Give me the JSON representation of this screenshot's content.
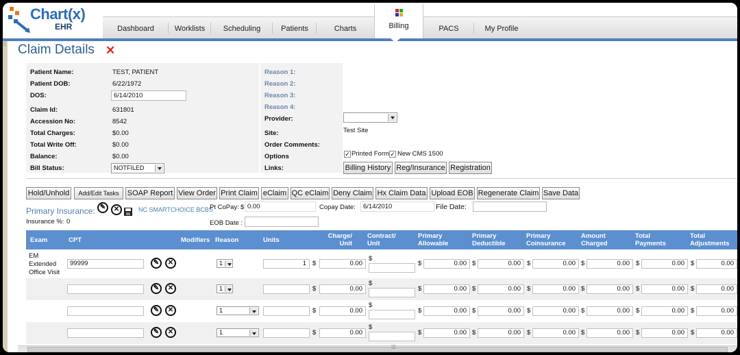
{
  "app": {
    "logo_text": "Chart(x)",
    "logo_sub": "EHR"
  },
  "nav": {
    "tabs": [
      "Dashboard",
      "Worklists",
      "Scheduling",
      "Patients",
      "Charts",
      "Billing",
      "PACS",
      "My Profile"
    ],
    "active": "Billing"
  },
  "page": {
    "title": "Claim Details",
    "close_glyph": "✕"
  },
  "patient": {
    "name_label": "Patient Name:",
    "name": "TEST, PATIENT",
    "dob_label": "Patient DOB:",
    "dob": "6/22/1972",
    "dos_label": "DOS:",
    "dos": "6/14/2010",
    "claim_id_label": "Claim Id:",
    "claim_id": "631801",
    "accession_label": "Accession No:",
    "accession": "8542",
    "total_charges_label": "Total Charges:",
    "total_charges": "$0.00",
    "total_writeoff_label": "Total Write Off:",
    "total_writeoff": "$0.00",
    "balance_label": "Balance:",
    "balance": "$0.00",
    "bill_status_label": "Bill Status:",
    "bill_status": "NOTFILED"
  },
  "reasons": [
    "Reason 1:",
    "Reason 2:",
    "Reason 3:",
    "Reason 4:"
  ],
  "details": {
    "provider_label": "Provider:",
    "provider": "",
    "site_label": "Site:",
    "site": "Test Site",
    "order_comments_label": "Order Comments:",
    "options_label": "Options",
    "printed_form": "Printed Form",
    "new_cms": "New CMS 1500",
    "links_label": "Links:",
    "links": [
      "Billing History",
      "Reg/Insurance",
      "Registration"
    ]
  },
  "toolbar": [
    "Hold/Unhold",
    "Add/Edit Tasks",
    "SOAP Report",
    "View Order",
    "Print Claim",
    "eClaim",
    "QC eClaim",
    "Deny Claim",
    "Hx Claim Data",
    "Upload EOB",
    "Regenerate Claim",
    "Save Data"
  ],
  "insurance": {
    "label": "Primary Insurance:",
    "name": "NC SMARTCHOICE BCBS",
    "pct_label": "Insurance %:",
    "pct": "0",
    "copay_label": "Pt CoPay:",
    "copay_dollar": "$",
    "copay": "0.00",
    "copay_date_label": "Copay Date:",
    "copay_date": "6/14/2010",
    "file_date_label": "File Date:",
    "file_date": "",
    "eob_date_label": "EOB Date :",
    "eob_date": ""
  },
  "grid": {
    "headers": [
      "Exam",
      "CPT",
      "Modifiers",
      "Reason",
      "Units",
      "Charge/\nUnit",
      "Contract/\nUnit",
      "Primary\nAllowable",
      "Primary\nDeductible",
      "Primary\nCoinsurance",
      "Amount\nCharged",
      "Total\nPayments",
      "Total\nAdjustments"
    ],
    "rows": [
      {
        "exam": "EM Extended Office Visit",
        "cpt": "99999",
        "reason": "1",
        "units": "1",
        "charge": "0.00",
        "allowable": "0.00",
        "deductible": "0.00",
        "coinsurance": "0.00",
        "amount": "0.00",
        "payments": "0.00",
        "adjustments": "0.00"
      },
      {
        "exam": "",
        "cpt": "",
        "reason": "1",
        "units": "",
        "charge": "0.00",
        "allowable": "0.00",
        "deductible": "0.00",
        "coinsurance": "0.00",
        "amount": "0.00",
        "payments": "0.00",
        "adjustments": "0.00"
      },
      {
        "exam": "",
        "cpt": "",
        "reason": "1",
        "units": "",
        "charge": "0.00",
        "allowable": "0.00",
        "deductible": "0.00",
        "coinsurance": "0.00",
        "amount": "0.00",
        "payments": "0.00",
        "adjustments": "0.00"
      },
      {
        "exam": "",
        "cpt": "",
        "reason": "1",
        "units": "",
        "charge": "0.00",
        "allowable": "0.00",
        "deductible": "0.00",
        "coinsurance": "0.00",
        "amount": "0.00",
        "payments": "0.00",
        "adjustments": "0.00"
      }
    ],
    "dollar": "$"
  },
  "icons": {
    "edit": "pencil-circle-icon",
    "delete": "x-circle-icon",
    "save": "floppy-disk-icon"
  },
  "colors": {
    "accent": "#4f7fc2",
    "grid_header": "#5b8fd0",
    "title": "#2e5f92",
    "close": "#dd2222"
  }
}
